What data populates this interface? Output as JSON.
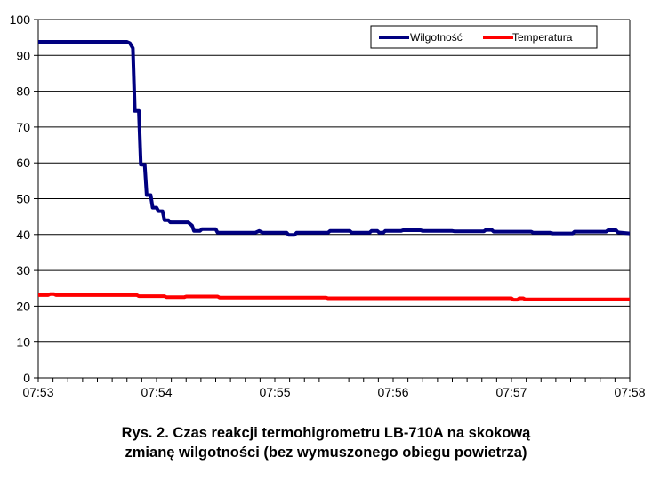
{
  "chart_data": {
    "type": "line",
    "title": "",
    "xlabel": "",
    "ylabel": "",
    "ylim": [
      0,
      100
    ],
    "yticks": [
      "0",
      "10",
      "20",
      "30",
      "40",
      "50",
      "60",
      "70",
      "80",
      "90",
      "100"
    ],
    "xlim": [
      0,
      300
    ],
    "xticks": [
      {
        "value": 0,
        "label": "07:53"
      },
      {
        "value": 60,
        "label": "07:54"
      },
      {
        "value": 120,
        "label": "07:55"
      },
      {
        "value": 180,
        "label": "07:56"
      },
      {
        "value": 240,
        "label": "07:57"
      },
      {
        "value": 300,
        "label": "07:58"
      }
    ],
    "grid": "horizontal",
    "legend": "top-right",
    "series": [
      {
        "name": "Wilgotność",
        "color": "#000080",
        "points": [
          [
            0,
            93.8
          ],
          [
            40,
            93.8
          ],
          [
            45,
            93.8
          ],
          [
            46.5,
            93.4
          ],
          [
            48,
            92
          ],
          [
            49,
            74.5
          ],
          [
            51,
            74.5
          ],
          [
            52,
            59.5
          ],
          [
            54,
            59.5
          ],
          [
            55,
            51
          ],
          [
            57,
            51
          ],
          [
            58,
            47.5
          ],
          [
            60,
            47.5
          ],
          [
            61,
            46.5
          ],
          [
            63,
            46.5
          ],
          [
            64,
            44
          ],
          [
            66,
            44
          ],
          [
            67,
            43.4
          ],
          [
            76,
            43.4
          ],
          [
            78,
            42.5
          ],
          [
            79,
            41
          ],
          [
            82,
            41
          ],
          [
            83,
            41.5
          ],
          [
            90,
            41.5
          ],
          [
            91,
            40.5
          ],
          [
            110,
            40.5
          ],
          [
            112,
            41
          ],
          [
            114,
            40.5
          ],
          [
            126,
            40.5
          ],
          [
            127,
            39.9
          ],
          [
            130,
            39.9
          ],
          [
            131,
            40.5
          ],
          [
            147,
            40.5
          ],
          [
            148,
            41
          ],
          [
            158,
            41
          ],
          [
            159,
            40.5
          ],
          [
            168,
            40.5
          ],
          [
            169,
            41
          ],
          [
            172,
            41
          ],
          [
            173,
            40.5
          ],
          [
            175,
            40.5
          ],
          [
            176,
            41
          ],
          [
            184,
            41
          ],
          [
            185,
            41.2
          ],
          [
            194,
            41.2
          ],
          [
            195,
            41
          ],
          [
            210,
            41
          ],
          [
            211,
            40.9
          ],
          [
            226,
            40.9
          ],
          [
            227,
            41.3
          ],
          [
            230,
            41.3
          ],
          [
            231,
            40.8
          ],
          [
            250,
            40.8
          ],
          [
            251,
            40.5
          ],
          [
            260,
            40.5
          ],
          [
            261,
            40.3
          ],
          [
            271,
            40.3
          ],
          [
            272,
            40.8
          ],
          [
            288,
            40.8
          ],
          [
            289,
            41.2
          ],
          [
            293,
            41.2
          ],
          [
            294,
            40.6
          ],
          [
            300,
            40.3
          ]
        ]
      },
      {
        "name": "Temperatura",
        "color": "#ff0000",
        "points": [
          [
            0,
            23.1
          ],
          [
            5,
            23.1
          ],
          [
            6,
            23.4
          ],
          [
            8,
            23.4
          ],
          [
            9,
            23.1
          ],
          [
            50,
            23.1
          ],
          [
            51,
            22.8
          ],
          [
            64,
            22.8
          ],
          [
            65,
            22.5
          ],
          [
            74,
            22.5
          ],
          [
            75,
            22.7
          ],
          [
            91,
            22.7
          ],
          [
            92,
            22.4
          ],
          [
            146,
            22.4
          ],
          [
            147,
            22.2
          ],
          [
            240,
            22.2
          ],
          [
            241,
            21.8
          ],
          [
            243,
            21.8
          ],
          [
            244,
            22.2
          ],
          [
            246,
            22.2
          ],
          [
            247,
            21.9
          ],
          [
            300,
            21.9
          ]
        ]
      }
    ]
  },
  "caption": {
    "line1": "Rys. 2. Czas reakcji termohigrometru LB-710A na skokową",
    "line2": "zmianę wilgotności (bez wymuszonego obiegu powietrza)"
  }
}
